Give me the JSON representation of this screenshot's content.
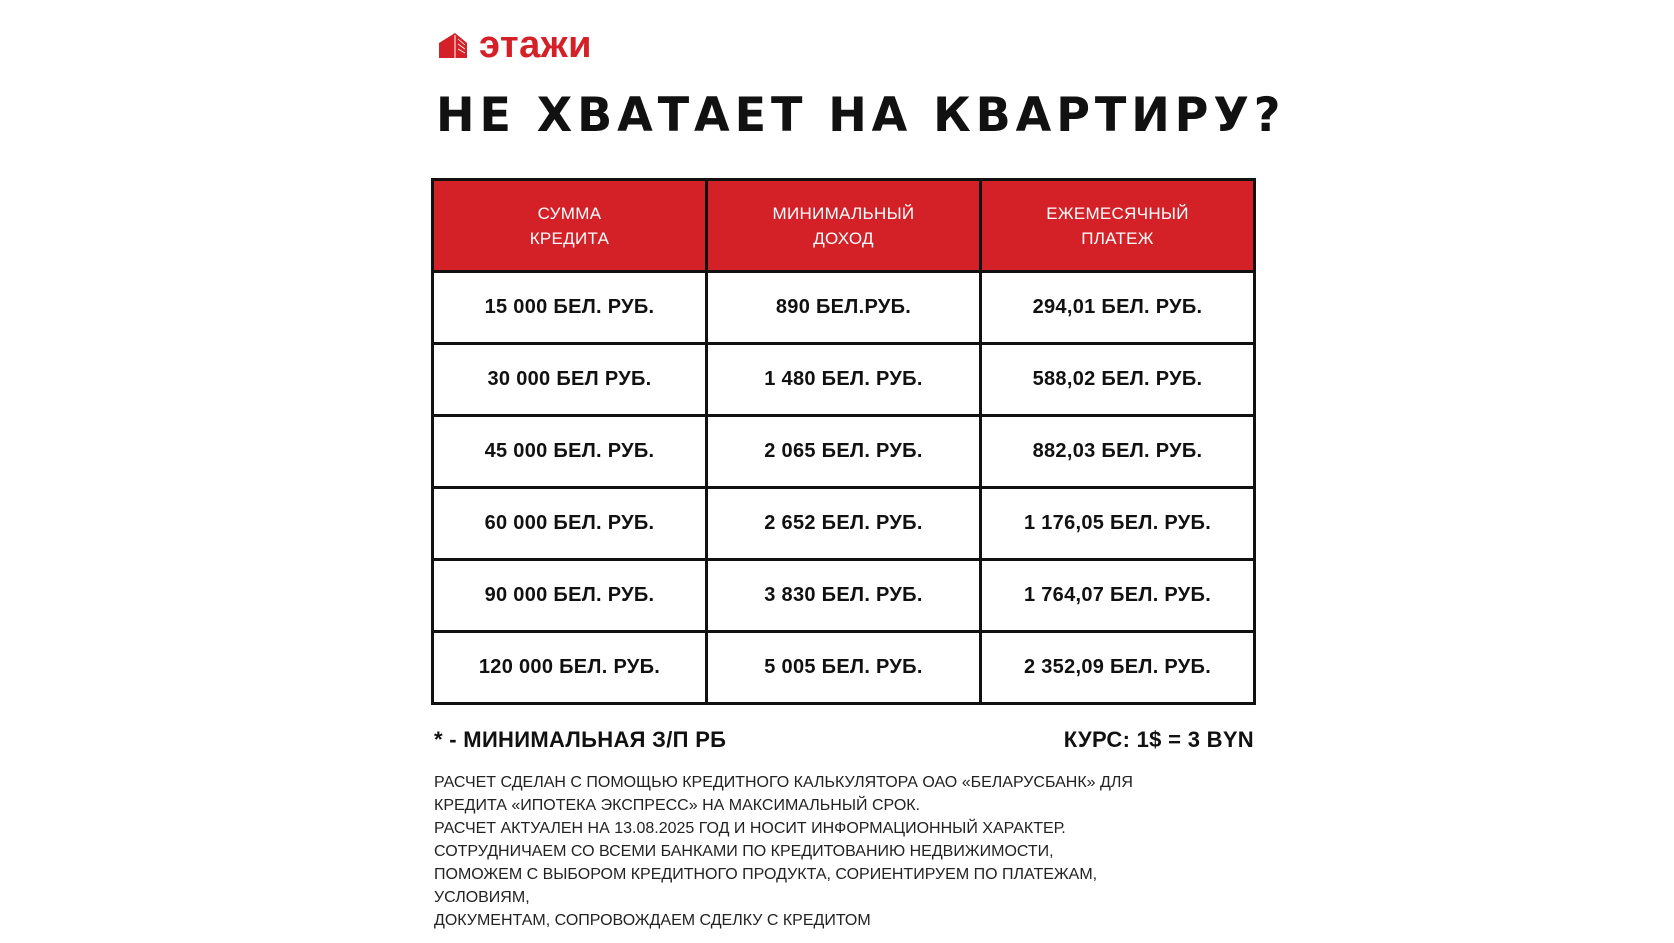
{
  "brand": {
    "name": "этажи",
    "color": "#d42027",
    "icon": "building-logo-icon"
  },
  "title": "НЕ ХВАТАЕТ НА КВАРТИРУ?",
  "table": {
    "header_color": "#d42027",
    "columns": [
      [
        "СУММА",
        "КРЕДИТА"
      ],
      [
        "МИНИМАЛЬНЫЙ",
        "ДОХОД"
      ],
      [
        "ЕЖЕМЕСЯЧНЫЙ",
        "ПЛАТЕЖ"
      ]
    ],
    "rows": [
      [
        "15 000 БЕЛ. РУБ.",
        "890 БЕЛ.РУБ.",
        "294,01 БЕЛ. РУБ."
      ],
      [
        "30 000 БЕЛ РУБ.",
        "1 480 БЕЛ. РУБ.",
        "588,02 БЕЛ. РУБ."
      ],
      [
        "45 000 БЕЛ. РУБ.",
        "2 065 БЕЛ. РУБ.",
        "882,03 БЕЛ. РУБ."
      ],
      [
        "60 000 БЕЛ. РУБ.",
        "2 652 БЕЛ. РУБ.",
        "1 176,05 БЕЛ. РУБ."
      ],
      [
        "90 000 БЕЛ. РУБ.",
        "3 830 БЕЛ. РУБ.",
        "1 764,07 БЕЛ. РУБ."
      ],
      [
        "120 000 БЕЛ. РУБ.",
        "5 005 БЕЛ. РУБ.",
        "2 352,09 БЕЛ. РУБ."
      ]
    ]
  },
  "notes": {
    "min_wage": "* - МИНИМАЛЬНАЯ З/П РБ",
    "rate": "КУРС: 1$ = 3 BYN"
  },
  "info_lines": [
    "РАСЧЕТ СДЕЛАН С ПОМОЩЬЮ КРЕДИТНОГО КАЛЬКУЛЯТОРА ОАО «БЕЛАРУСБАНК» ДЛЯ",
    "КРЕДИТА «ИПОТЕКА ЭКСПРЕСС» НА МАКСИМАЛЬНЫЙ СРОК.",
    "РАСЧЕТ АКТУАЛЕН НА 13.08.2025 ГОД И НОСИТ ИНФОРМАЦИОННЫЙ ХАРАКТЕР.",
    "СОТРУДНИЧАЕМ СО ВСЕМИ БАНКАМИ ПО КРЕДИТОВАНИЮ НЕДВИЖИМОСТИ,",
    "ПОМОЖЕМ С ВЫБОРОМ КРЕДИТНОГО ПРОДУКТА, СОРИЕНТИРУЕМ ПО ПЛАТЕЖАМ,",
    "УСЛОВИЯМ,",
    "ДОКУМЕНТАМ, СОПРОВОЖДАЕМ СДЕЛКУ С КРЕДИТОМ"
  ]
}
